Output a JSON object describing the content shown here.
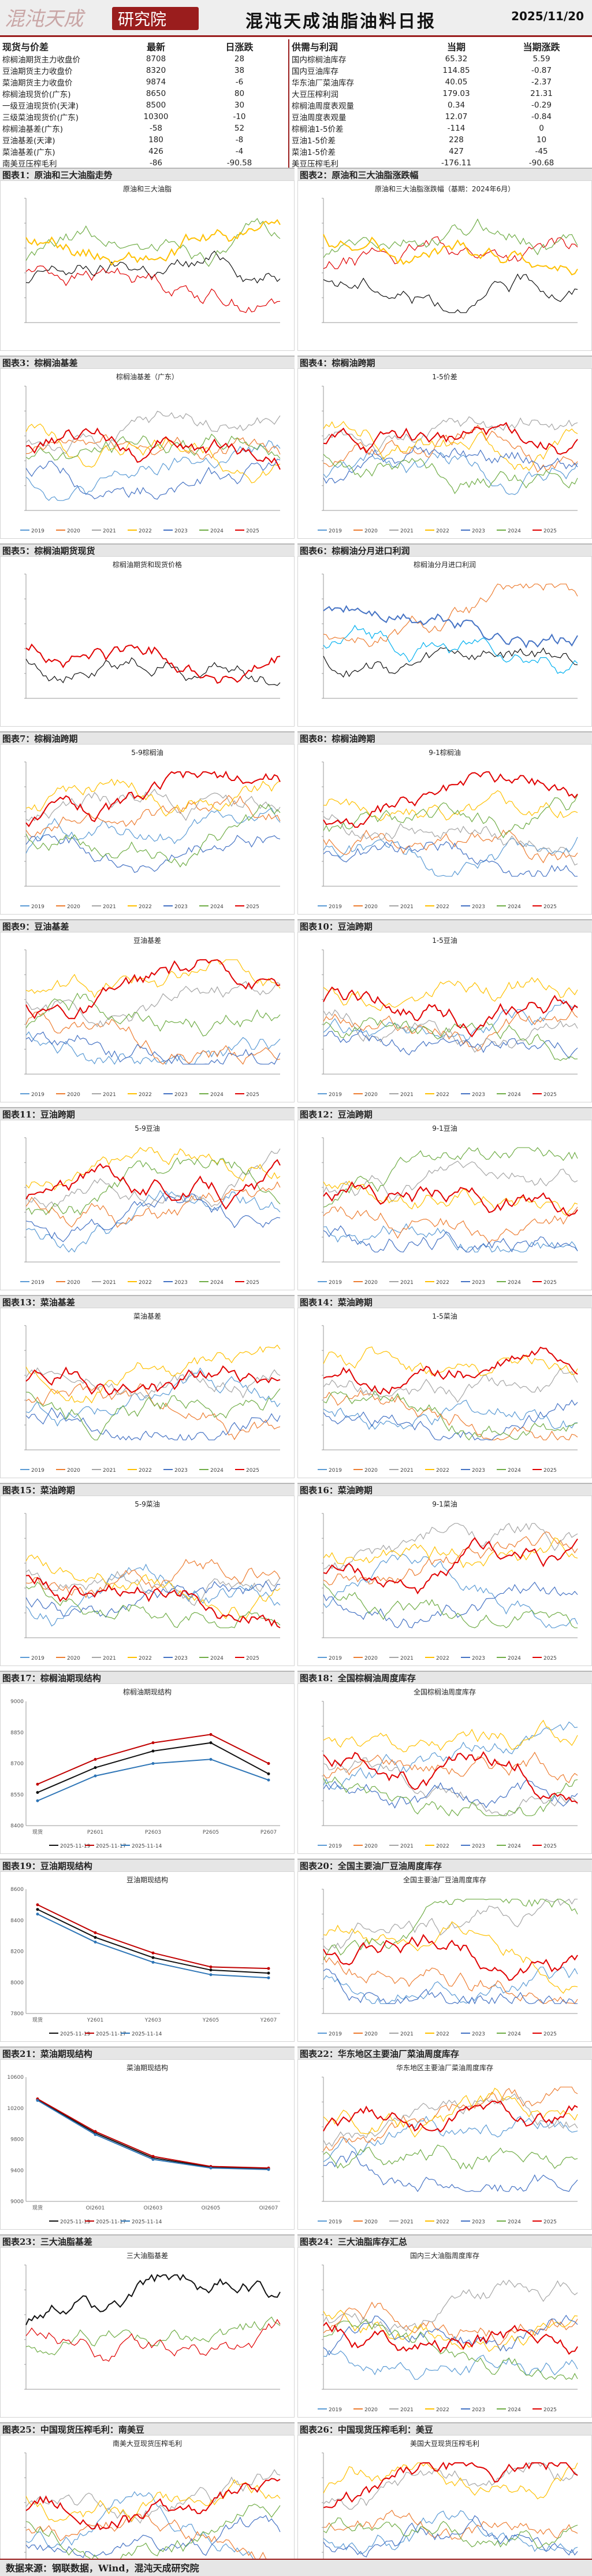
{
  "header": {
    "logo_text": "混沌天成研究院",
    "title": "混沌天成油脂油料日报",
    "date": "2025/11/20"
  },
  "summary": {
    "left_headers": [
      "现货与价差",
      "最新",
      "日涨跌"
    ],
    "right_headers": [
      "供需与利润",
      "当期",
      "当期涨跌"
    ],
    "rows": [
      {
        "l_name": "棕榈油期货主力收盘价",
        "l_val": "8708",
        "l_chg": "28",
        "r_name": "国内棕榈油库存",
        "r_val": "65.32",
        "r_chg": "5.59"
      },
      {
        "l_name": "豆油期货主力收盘价",
        "l_val": "8320",
        "l_chg": "38",
        "r_name": "国内豆油库存",
        "r_val": "114.85",
        "r_chg": "-0.87"
      },
      {
        "l_name": "菜油期货主力收盘价",
        "l_val": "9874",
        "l_chg": "-6",
        "r_name": "华东油厂菜油库存",
        "r_val": "40.05",
        "r_chg": "-2.37"
      },
      {
        "l_name": "棕榈油现货价(广东)",
        "l_val": "8650",
        "l_chg": "80",
        "r_name": "大豆压榨利润",
        "r_val": "179.03",
        "r_chg": "21.31"
      },
      {
        "l_name": "一级豆油现货价(天津)",
        "l_val": "8500",
        "l_chg": "30",
        "r_name": "棕榈油周度表观量",
        "r_val": "0.34",
        "r_chg": "-0.29"
      },
      {
        "l_name": "三级菜油现货价(广东)",
        "l_val": "10300",
        "l_chg": "-10",
        "r_name": "豆油周度表观量",
        "r_val": "12.07",
        "r_chg": "-0.84"
      },
      {
        "l_name": "棕榈油基差(广东)",
        "l_val": "-58",
        "l_chg": "52",
        "r_name": "棕榈油1-5价差",
        "r_val": "-114",
        "r_chg": "0"
      },
      {
        "l_name": "豆油基差(天津)",
        "l_val": "180",
        "l_chg": "-8",
        "r_name": "豆油1-5价差",
        "r_val": "228",
        "r_chg": "10"
      },
      {
        "l_name": "菜油基差(广东)",
        "l_val": "426",
        "l_chg": "-4",
        "r_name": "菜油1-5价差",
        "r_val": "427",
        "r_chg": "-45"
      },
      {
        "l_name": "南美豆压榨毛利",
        "l_val": "-86",
        "l_chg": "-90.58",
        "r_name": "美豆压榨毛利",
        "r_val": "-176.11",
        "r_chg": "-90.68"
      }
    ]
  },
  "panels": [
    {
      "label": "图表1：原油和三大油脂走势",
      "chart_title": "原油和三大油脂"
    },
    {
      "label": "图表2：原油和三大油脂涨跌幅",
      "chart_title": "原油和三大油脂涨跌幅（基期：2024年6月）"
    },
    {
      "label": "图表3：棕榈油基差",
      "chart_title": "棕榈油基差（广东）"
    },
    {
      "label": "图表4：棕榈油跨期",
      "chart_title": "1-5价差"
    },
    {
      "label": "图表5：棕榈油期货现货",
      "chart_title": "棕榈油期货和现货价格"
    },
    {
      "label": "图表6：棕榈油分月进口利润",
      "chart_title": "棕榈油分月进口利润"
    },
    {
      "label": "图表7：棕榈油跨期",
      "chart_title": "5-9棕榈油"
    },
    {
      "label": "图表8：棕榈油跨期",
      "chart_title": "9-1棕榈油"
    },
    {
      "label": "图表9：豆油基差",
      "chart_title": "豆油基差"
    },
    {
      "label": "图表10：豆油跨期",
      "chart_title": "1-5豆油"
    },
    {
      "label": "图表11：豆油跨期",
      "chart_title": "5-9豆油"
    },
    {
      "label": "图表12：豆油跨期",
      "chart_title": "9-1豆油"
    },
    {
      "label": "图表13：菜油基差",
      "chart_title": "菜油基差"
    },
    {
      "label": "图表14：菜油跨期",
      "chart_title": "1-5菜油"
    },
    {
      "label": "图表15：菜油跨期",
      "chart_title": "5-9菜油"
    },
    {
      "label": "图表16：菜油跨期",
      "chart_title": "9-1菜油"
    },
    {
      "label": "图表17：棕榈油期现结构",
      "chart_title": "棕榈油期现结构"
    },
    {
      "label": "图表18：全国棕榈油周度库存",
      "chart_title": "全国棕榈油周度库存"
    },
    {
      "label": "图表19：豆油期现结构",
      "chart_title": "豆油期现结构"
    },
    {
      "label": "图表20：全国主要油厂豆油周度库存",
      "chart_title": "全国主要油厂豆油周度库存"
    },
    {
      "label": "图表21：菜油期现结构",
      "chart_title": "菜油期现结构"
    },
    {
      "label": "图表22：华东地区主要油厂菜油周度库存",
      "chart_title": "华东地区主要油厂菜油周度库存"
    },
    {
      "label": "图表23：三大油脂基差",
      "chart_title": "三大油脂基差"
    },
    {
      "label": "图表24：三大油脂库存汇总",
      "chart_title": "国内三大油脂周度库存"
    },
    {
      "label": "图表25：中国现货压榨毛利：南美豆",
      "chart_title": "南美大豆现货压榨毛利"
    },
    {
      "label": "图表26：中国现货压榨毛利：美豆",
      "chart_title": "美国大豆现货压榨毛利"
    }
  ],
  "legend_years": [
    "2019",
    "2020",
    "2021",
    "2022",
    "2023",
    "2024",
    "2025"
  ],
  "colors": {
    "brand": "#9a1d1d",
    "y2019": "#5b9bd5",
    "y2020": "#ed7d31",
    "y2021": "#a5a5a5",
    "y2022": "#ffc000",
    "y2023": "#4472c4",
    "y2024": "#70ad47",
    "y2025": "#e00000"
  },
  "chart_data": [
    {
      "type": "line",
      "title": "棕榈油期现结构",
      "categories": [
        "现货",
        "P2601",
        "P2603",
        "P2605",
        "P2607"
      ],
      "ylim": [
        8400,
        9000
      ],
      "series": [
        {
          "name": "2025-11-19",
          "values": [
            8560,
            8680,
            8760,
            8800,
            8650
          ]
        },
        {
          "name": "2025-11-17",
          "values": [
            8600,
            8720,
            8800,
            8840,
            8700
          ]
        },
        {
          "name": "2025-11-14",
          "values": [
            8520,
            8640,
            8700,
            8720,
            8620
          ]
        }
      ]
    },
    {
      "type": "line",
      "title": "豆油期现结构",
      "categories": [
        "现货",
        "Y2601",
        "Y2603",
        "Y2605",
        "Y2607"
      ],
      "ylim": [
        7800,
        8600
      ],
      "series": [
        {
          "name": "2025-11-19",
          "values": [
            8470,
            8290,
            8160,
            8080,
            8060
          ]
        },
        {
          "name": "2025-11-17",
          "values": [
            8500,
            8320,
            8190,
            8100,
            8090
          ]
        },
        {
          "name": "2025-11-14",
          "values": [
            8440,
            8260,
            8130,
            8050,
            8030
          ]
        }
      ]
    },
    {
      "type": "line",
      "title": "菜油期现结构",
      "categories": [
        "现货",
        "OI2601",
        "OI2603",
        "OI2605",
        "OI2607"
      ],
      "ylim": [
        9000,
        10600
      ],
      "series": [
        {
          "name": "2025-11-19",
          "values": [
            10310,
            9880,
            9560,
            9440,
            9420
          ]
        },
        {
          "name": "2025-11-17",
          "values": [
            10320,
            9900,
            9580,
            9450,
            9430
          ]
        },
        {
          "name": "2025-11-14",
          "values": [
            10300,
            9860,
            9540,
            9430,
            9410
          ]
        }
      ]
    }
  ],
  "structure_legend": [
    "2025-11-19",
    "2025-11-17",
    "2025-11-14"
  ],
  "footer": "数据来源：钢联数据，Wind，混沌天成研究院"
}
